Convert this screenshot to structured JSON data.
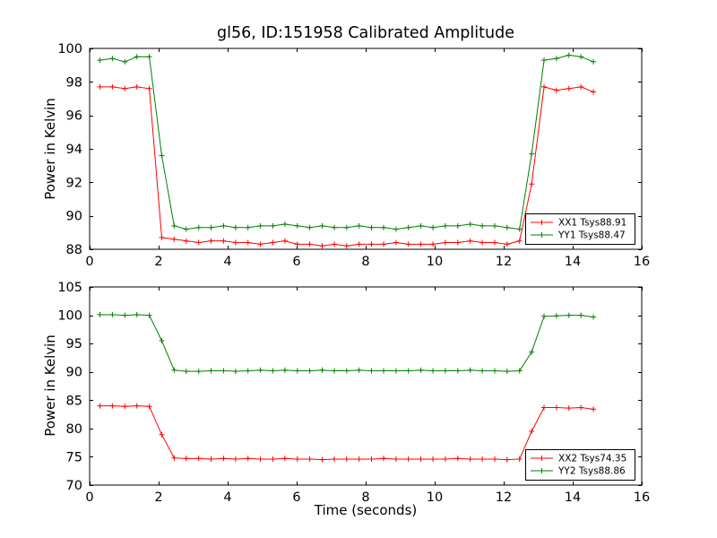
{
  "figure": {
    "title": "gl56, ID:151958 Calibrated Amplitude",
    "xlabel": "Time (seconds)",
    "ylabel": "Power in Kelvin",
    "background": "#ffffff",
    "frame_color": "#000000"
  },
  "chart_data": [
    {
      "type": "line",
      "marker": "+",
      "ylabel": "Power in Kelvin",
      "xlim": [
        0,
        16
      ],
      "ylim": [
        88,
        100
      ],
      "xticks": [
        0,
        2,
        4,
        6,
        8,
        10,
        12,
        14,
        16
      ],
      "yticks": [
        88,
        90,
        92,
        94,
        96,
        98,
        100
      ],
      "legend_position": "lower right",
      "x": [
        0.3,
        0.66,
        1.02,
        1.37,
        1.73,
        2.09,
        2.45,
        2.8,
        3.16,
        3.52,
        3.88,
        4.23,
        4.59,
        4.95,
        5.31,
        5.66,
        6.02,
        6.38,
        6.74,
        7.09,
        7.45,
        7.81,
        8.17,
        8.52,
        8.88,
        9.24,
        9.6,
        9.95,
        10.31,
        10.67,
        11.03,
        11.38,
        11.74,
        12.1,
        12.46,
        12.81,
        13.17,
        13.53,
        13.89,
        14.24,
        14.6
      ],
      "series": [
        {
          "name": "XX1 Tsys88.91",
          "color": "#ff0000",
          "values": [
            97.7,
            97.7,
            97.6,
            97.7,
            97.6,
            88.7,
            88.6,
            88.5,
            88.4,
            88.5,
            88.5,
            88.4,
            88.4,
            88.3,
            88.4,
            88.5,
            88.3,
            88.3,
            88.2,
            88.3,
            88.2,
            88.3,
            88.3,
            88.3,
            88.4,
            88.3,
            88.3,
            88.3,
            88.4,
            88.4,
            88.5,
            88.4,
            88.4,
            88.3,
            88.5,
            91.9,
            97.7,
            97.5,
            97.6,
            97.7,
            97.4
          ]
        },
        {
          "name": "YY1 Tsys88.47",
          "color": "#008000",
          "values": [
            99.3,
            99.4,
            99.2,
            99.5,
            99.5,
            93.6,
            89.4,
            89.2,
            89.3,
            89.3,
            89.4,
            89.3,
            89.3,
            89.4,
            89.4,
            89.5,
            89.4,
            89.3,
            89.4,
            89.3,
            89.3,
            89.4,
            89.3,
            89.3,
            89.2,
            89.3,
            89.4,
            89.3,
            89.4,
            89.4,
            89.5,
            89.4,
            89.4,
            89.3,
            89.2,
            93.7,
            99.3,
            99.4,
            99.6,
            99.5,
            99.2
          ]
        }
      ]
    },
    {
      "type": "line",
      "marker": "+",
      "xlabel": "Time (seconds)",
      "ylabel": "Power in Kelvin",
      "xlim": [
        0,
        16
      ],
      "ylim": [
        70,
        105
      ],
      "xticks": [
        0,
        2,
        4,
        6,
        8,
        10,
        12,
        14,
        16
      ],
      "yticks": [
        70,
        75,
        80,
        85,
        90,
        95,
        100,
        105
      ],
      "legend_position": "lower right",
      "x": [
        0.3,
        0.66,
        1.02,
        1.37,
        1.73,
        2.09,
        2.45,
        2.8,
        3.16,
        3.52,
        3.88,
        4.23,
        4.59,
        4.95,
        5.31,
        5.66,
        6.02,
        6.38,
        6.74,
        7.09,
        7.45,
        7.81,
        8.17,
        8.52,
        8.88,
        9.24,
        9.6,
        9.95,
        10.31,
        10.67,
        11.03,
        11.38,
        11.74,
        12.1,
        12.46,
        12.81,
        13.17,
        13.53,
        13.89,
        14.24,
        14.6
      ],
      "series": [
        {
          "name": "XX2 Tsys74.35",
          "color": "#ff0000",
          "values": [
            84.0,
            84.0,
            83.9,
            84.0,
            83.9,
            78.9,
            74.8,
            74.7,
            74.7,
            74.6,
            74.7,
            74.6,
            74.7,
            74.6,
            74.6,
            74.7,
            74.6,
            74.6,
            74.5,
            74.6,
            74.6,
            74.6,
            74.6,
            74.7,
            74.6,
            74.6,
            74.6,
            74.6,
            74.6,
            74.7,
            74.6,
            74.6,
            74.6,
            74.5,
            74.6,
            79.5,
            83.7,
            83.7,
            83.6,
            83.7,
            83.4
          ]
        },
        {
          "name": "YY2 Tsys88.86",
          "color": "#008000",
          "values": [
            100.1,
            100.1,
            100.0,
            100.1,
            100.0,
            95.5,
            90.3,
            90.1,
            90.1,
            90.2,
            90.2,
            90.1,
            90.2,
            90.3,
            90.2,
            90.3,
            90.2,
            90.2,
            90.3,
            90.2,
            90.2,
            90.3,
            90.2,
            90.2,
            90.2,
            90.2,
            90.3,
            90.2,
            90.2,
            90.2,
            90.3,
            90.2,
            90.2,
            90.1,
            90.2,
            93.5,
            99.8,
            99.9,
            100.0,
            100.0,
            99.7
          ]
        }
      ]
    }
  ]
}
